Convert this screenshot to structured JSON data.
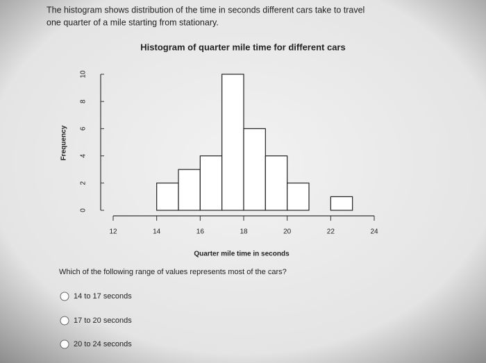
{
  "intro": [
    "The histogram shows distribution of the time in seconds different cars take to travel",
    "one quarter of a mile starting from stationary."
  ],
  "chart_data": {
    "type": "histogram",
    "title": "Histogram of quarter mile time for different cars",
    "x_label": "Quarter mile time in seconds",
    "y_label": "Frequency",
    "bins": [
      14,
      15,
      16,
      17,
      18,
      19,
      20,
      21,
      22,
      23
    ],
    "values": [
      2,
      3,
      4,
      10,
      6,
      4,
      2,
      0,
      1
    ],
    "color": "#ffffff",
    "xlim": [
      12,
      24
    ],
    "xticks": [
      12,
      14,
      16,
      18,
      20,
      22,
      24
    ],
    "ylim": [
      0,
      10
    ],
    "yticks": [
      0,
      2,
      4,
      6,
      8,
      10
    ]
  },
  "question": "Which of the following range of values represents most of the cars?",
  "options": [
    "14 to 17 seconds",
    "17 to 20 seconds",
    "20 to 24 seconds"
  ]
}
